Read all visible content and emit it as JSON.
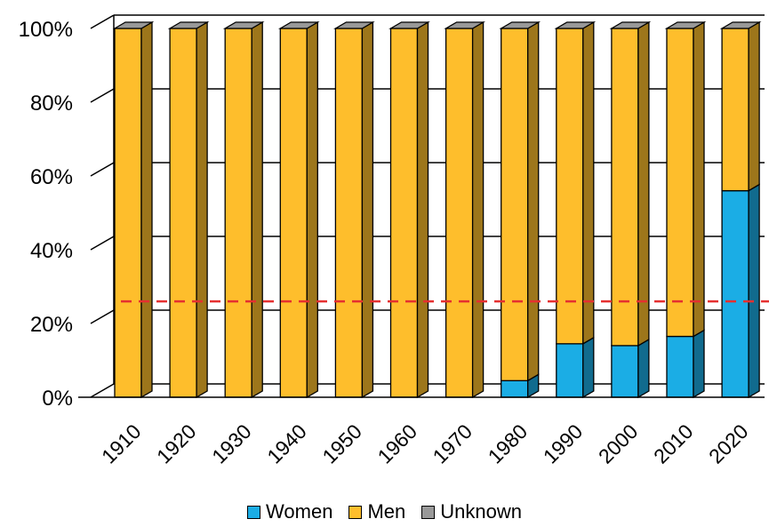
{
  "chart_data": {
    "type": "bar",
    "stacked": true,
    "normalized_percent": true,
    "style": "3d-columns",
    "categories": [
      "1910",
      "1920",
      "1930",
      "1940",
      "1950",
      "1960",
      "1970",
      "1980",
      "1990",
      "2000",
      "2010",
      "2020"
    ],
    "series": [
      {
        "name": "Women",
        "color": "#1BADE5",
        "values": [
          0,
          0,
          0,
          0,
          0,
          0,
          0,
          4.5,
          14.5,
          14,
          16.5,
          56
        ]
      },
      {
        "name": "Men",
        "color": "#FEBE2C",
        "values": [
          100,
          100,
          100,
          100,
          100,
          100,
          100,
          95.5,
          85.5,
          86,
          83.5,
          44
        ]
      },
      {
        "name": "Unknown",
        "color": "#999999",
        "values": [
          0,
          0,
          0,
          0,
          0,
          0,
          0,
          0,
          0,
          0,
          0,
          0
        ]
      }
    ],
    "yticks": [
      "0%",
      "20%",
      "40%",
      "60%",
      "80%",
      "100%"
    ],
    "ylim": [
      0,
      100
    ],
    "reference_line": {
      "value": 26,
      "color": "#E53030",
      "style": "dashed"
    },
    "grid": true,
    "legend_position": "bottom",
    "title": "",
    "xlabel": "",
    "ylabel": ""
  }
}
